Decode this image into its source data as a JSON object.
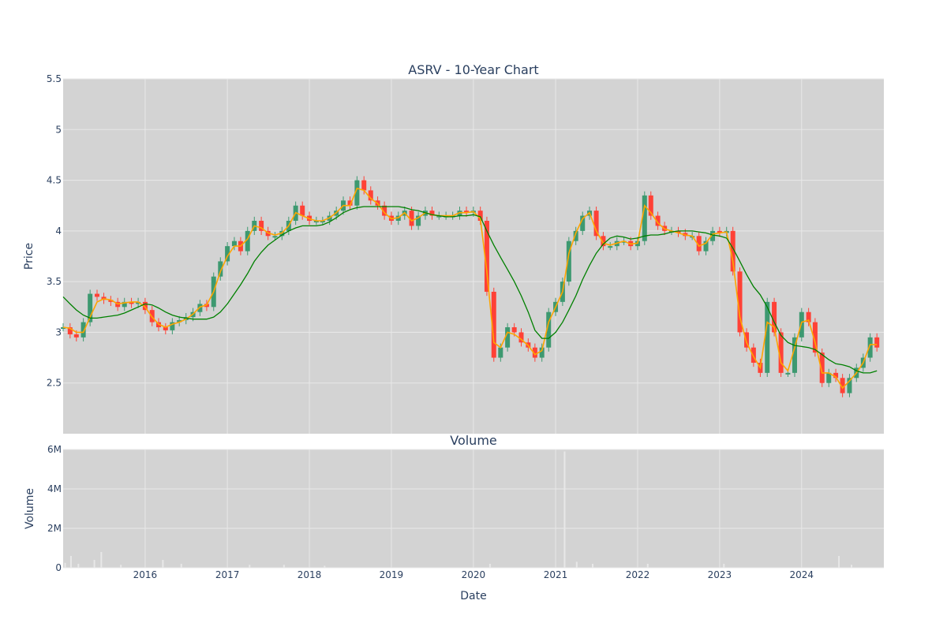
{
  "chart_data": [
    {
      "type": "line",
      "title": "ASRV - 10-Year Chart",
      "ylabel": "Price",
      "xlabel": "",
      "ylim": [
        2.0,
        5.5
      ],
      "x_range": [
        "2015-01-01",
        "2025-01-01"
      ],
      "y_ticks": [
        "2.5",
        "3",
        "3.5",
        "4",
        "4.5",
        "5",
        "5.5"
      ],
      "y_tick_values": [
        2.5,
        3,
        3.5,
        4,
        4.5,
        5,
        5.5
      ],
      "grid": true,
      "legend": "none",
      "colors": {
        "up": "#3d9970",
        "down": "#ff4136",
        "short_ma": "#ffa500",
        "long_ma": "#008000",
        "plot_bg": "#d3d3d3",
        "grid": "#e8e8e8",
        "text": "#2a3f5f"
      },
      "series": [
        {
          "role": "price",
          "x": [
            "2015-01-01",
            "2015-02-01",
            "2015-03-01",
            "2015-04-01",
            "2015-05-01",
            "2015-06-01",
            "2015-07-01",
            "2015-08-01",
            "2015-09-01",
            "2015-10-01",
            "2015-11-01",
            "2015-12-01",
            "2016-01-01",
            "2016-02-01",
            "2016-03-01",
            "2016-04-01",
            "2016-05-01",
            "2016-06-01",
            "2016-07-01",
            "2016-08-01",
            "2016-09-01",
            "2016-10-01",
            "2016-11-01",
            "2016-12-01",
            "2017-01-01",
            "2017-02-01",
            "2017-03-01",
            "2017-04-01",
            "2017-05-01",
            "2017-06-01",
            "2017-07-01",
            "2017-08-01",
            "2017-09-01",
            "2017-10-01",
            "2017-11-01",
            "2017-12-01",
            "2018-01-01",
            "2018-02-01",
            "2018-03-01",
            "2018-04-01",
            "2018-05-01",
            "2018-06-01",
            "2018-07-01",
            "2018-08-01",
            "2018-09-01",
            "2018-10-01",
            "2018-11-01",
            "2018-12-01",
            "2019-01-01",
            "2019-02-01",
            "2019-03-01",
            "2019-04-01",
            "2019-05-01",
            "2019-06-01",
            "2019-07-01",
            "2019-08-01",
            "2019-09-01",
            "2019-10-01",
            "2019-11-01",
            "2019-12-01",
            "2020-01-01",
            "2020-02-01",
            "2020-03-01",
            "2020-04-01",
            "2020-05-01",
            "2020-06-01",
            "2020-07-01",
            "2020-08-01",
            "2020-09-01",
            "2020-10-01",
            "2020-11-01",
            "2020-12-01",
            "2021-01-01",
            "2021-02-01",
            "2021-03-01",
            "2021-04-01",
            "2021-05-01",
            "2021-06-01",
            "2021-07-01",
            "2021-08-01",
            "2021-09-01",
            "2021-10-01",
            "2021-11-01",
            "2021-12-01",
            "2022-01-01",
            "2022-02-01",
            "2022-03-01",
            "2022-04-01",
            "2022-05-01",
            "2022-06-01",
            "2022-07-01",
            "2022-08-01",
            "2022-09-01",
            "2022-10-01",
            "2022-11-01",
            "2022-12-01",
            "2023-01-01",
            "2023-02-01",
            "2023-03-01",
            "2023-04-01",
            "2023-05-01",
            "2023-06-01",
            "2023-07-01",
            "2023-08-01",
            "2023-09-01",
            "2023-10-01",
            "2023-11-01",
            "2023-12-01",
            "2024-01-01",
            "2024-02-01",
            "2024-03-01",
            "2024-04-01",
            "2024-05-01",
            "2024-06-01",
            "2024-07-01",
            "2024-08-01",
            "2024-09-01",
            "2024-10-01",
            "2024-11-01",
            "2024-12-01"
          ],
          "y": [
            3.05,
            2.98,
            2.95,
            3.1,
            3.38,
            3.35,
            3.32,
            3.3,
            3.25,
            3.3,
            3.28,
            3.3,
            3.22,
            3.1,
            3.05,
            3.02,
            3.1,
            3.12,
            3.15,
            3.2,
            3.28,
            3.25,
            3.55,
            3.7,
            3.85,
            3.9,
            3.8,
            4.0,
            4.1,
            4.0,
            3.95,
            3.95,
            4.0,
            4.1,
            4.25,
            4.15,
            4.1,
            4.1,
            4.1,
            4.15,
            4.2,
            4.3,
            4.25,
            4.5,
            4.4,
            4.3,
            4.25,
            4.15,
            4.1,
            4.15,
            4.2,
            4.05,
            4.15,
            4.2,
            4.15,
            4.15,
            4.15,
            4.15,
            4.2,
            4.18,
            4.2,
            4.1,
            3.4,
            2.75,
            2.85,
            3.05,
            3.0,
            2.9,
            2.85,
            2.75,
            2.85,
            3.2,
            3.3,
            3.5,
            3.9,
            4.0,
            4.15,
            4.2,
            3.95,
            3.85,
            3.85,
            3.9,
            3.9,
            3.85,
            3.9,
            4.35,
            4.15,
            4.05,
            4.0,
            4.0,
            3.98,
            3.95,
            3.95,
            3.8,
            3.9,
            4.0,
            3.98,
            4.0,
            3.6,
            3.0,
            2.85,
            2.7,
            2.6,
            3.3,
            3.0,
            2.6,
            2.6,
            2.95,
            3.2,
            3.1,
            2.8,
            2.5,
            2.6,
            2.55,
            2.4,
            2.55,
            2.65,
            2.75,
            2.95,
            2.85
          ]
        },
        {
          "role": "short_moving_average",
          "x": [
            "2015-01-01",
            "2015-02-01",
            "2015-03-01",
            "2015-04-01",
            "2015-05-01",
            "2015-06-01",
            "2015-07-01",
            "2015-08-01",
            "2015-09-01",
            "2015-10-01",
            "2015-11-01",
            "2015-12-01",
            "2016-01-01",
            "2016-02-01",
            "2016-03-01",
            "2016-04-01",
            "2016-05-01",
            "2016-06-01",
            "2016-07-01",
            "2016-08-01",
            "2016-09-01",
            "2016-10-01",
            "2016-11-01",
            "2016-12-01",
            "2017-01-01",
            "2017-02-01",
            "2017-03-01",
            "2017-04-01",
            "2017-05-01",
            "2017-06-01",
            "2017-07-01",
            "2017-08-01",
            "2017-09-01",
            "2017-10-01",
            "2017-11-01",
            "2017-12-01",
            "2018-01-01",
            "2018-02-01",
            "2018-03-01",
            "2018-04-01",
            "2018-05-01",
            "2018-06-01",
            "2018-07-01",
            "2018-08-01",
            "2018-09-01",
            "2018-10-01",
            "2018-11-01",
            "2018-12-01",
            "2019-01-01",
            "2019-02-01",
            "2019-03-01",
            "2019-04-01",
            "2019-05-01",
            "2019-06-01",
            "2019-07-01",
            "2019-08-01",
            "2019-09-01",
            "2019-10-01",
            "2019-11-01",
            "2019-12-01",
            "2020-01-01",
            "2020-02-01",
            "2020-03-01",
            "2020-04-01",
            "2020-05-01",
            "2020-06-01",
            "2020-07-01",
            "2020-08-01",
            "2020-09-01",
            "2020-10-01",
            "2020-11-01",
            "2020-12-01",
            "2021-01-01",
            "2021-02-01",
            "2021-03-01",
            "2021-04-01",
            "2021-05-01",
            "2021-06-01",
            "2021-07-01",
            "2021-08-01",
            "2021-09-01",
            "2021-10-01",
            "2021-11-01",
            "2021-12-01",
            "2022-01-01",
            "2022-02-01",
            "2022-03-01",
            "2022-04-01",
            "2022-05-01",
            "2022-06-01",
            "2022-07-01",
            "2022-08-01",
            "2022-09-01",
            "2022-10-01",
            "2022-11-01",
            "2022-12-01",
            "2023-01-01",
            "2023-02-01",
            "2023-03-01",
            "2023-04-01",
            "2023-05-01",
            "2023-06-01",
            "2023-07-01",
            "2023-08-01",
            "2023-09-01",
            "2023-10-01",
            "2023-11-01",
            "2023-12-01",
            "2024-01-01",
            "2024-02-01",
            "2024-03-01",
            "2024-04-01",
            "2024-05-01",
            "2024-06-01",
            "2024-07-01",
            "2024-08-01",
            "2024-09-01",
            "2024-10-01",
            "2024-11-01",
            "2024-12-01"
          ],
          "y": [
            3.05,
            3.04,
            3.0,
            3.0,
            3.15,
            3.3,
            3.33,
            3.32,
            3.28,
            3.29,
            3.3,
            3.3,
            3.25,
            3.15,
            3.08,
            3.05,
            3.08,
            3.1,
            3.13,
            3.18,
            3.25,
            3.27,
            3.4,
            3.6,
            3.75,
            3.85,
            3.85,
            3.92,
            4.05,
            4.03,
            3.98,
            3.96,
            3.98,
            4.05,
            4.18,
            4.15,
            4.12,
            4.1,
            4.1,
            4.13,
            4.18,
            4.25,
            4.25,
            4.42,
            4.4,
            4.32,
            4.27,
            4.18,
            4.12,
            4.13,
            4.18,
            4.1,
            4.13,
            4.18,
            4.16,
            4.15,
            4.15,
            4.15,
            4.18,
            4.18,
            4.19,
            4.12,
            3.6,
            2.9,
            2.85,
            3.0,
            2.98,
            2.93,
            2.87,
            2.78,
            2.82,
            3.1,
            3.25,
            3.4,
            3.78,
            3.98,
            4.12,
            4.18,
            4.0,
            3.88,
            3.86,
            3.88,
            3.9,
            3.87,
            3.88,
            4.25,
            4.18,
            4.08,
            4.02,
            4.0,
            3.98,
            3.96,
            3.95,
            3.85,
            3.88,
            3.97,
            3.98,
            3.99,
            3.7,
            3.15,
            2.9,
            2.76,
            2.65,
            3.1,
            3.05,
            2.7,
            2.62,
            2.85,
            3.1,
            3.12,
            2.9,
            2.6,
            2.6,
            2.56,
            2.45,
            2.52,
            2.6,
            2.7,
            2.88,
            2.88
          ]
        },
        {
          "role": "long_moving_average",
          "x": [
            "2015-01-01",
            "2015-02-01",
            "2015-03-01",
            "2015-04-01",
            "2015-05-01",
            "2015-06-01",
            "2015-07-01",
            "2015-08-01",
            "2015-09-01",
            "2015-10-01",
            "2015-11-01",
            "2015-12-01",
            "2016-01-01",
            "2016-02-01",
            "2016-03-01",
            "2016-04-01",
            "2016-05-01",
            "2016-06-01",
            "2016-07-01",
            "2016-08-01",
            "2016-09-01",
            "2016-10-01",
            "2016-11-01",
            "2016-12-01",
            "2017-01-01",
            "2017-02-01",
            "2017-03-01",
            "2017-04-01",
            "2017-05-01",
            "2017-06-01",
            "2017-07-01",
            "2017-08-01",
            "2017-09-01",
            "2017-10-01",
            "2017-11-01",
            "2017-12-01",
            "2018-01-01",
            "2018-02-01",
            "2018-03-01",
            "2018-04-01",
            "2018-05-01",
            "2018-06-01",
            "2018-07-01",
            "2018-08-01",
            "2018-09-01",
            "2018-10-01",
            "2018-11-01",
            "2018-12-01",
            "2019-01-01",
            "2019-02-01",
            "2019-03-01",
            "2019-04-01",
            "2019-05-01",
            "2019-06-01",
            "2019-07-01",
            "2019-08-01",
            "2019-09-01",
            "2019-10-01",
            "2019-11-01",
            "2019-12-01",
            "2020-01-01",
            "2020-02-01",
            "2020-03-01",
            "2020-04-01",
            "2020-05-01",
            "2020-06-01",
            "2020-07-01",
            "2020-08-01",
            "2020-09-01",
            "2020-10-01",
            "2020-11-01",
            "2020-12-01",
            "2021-01-01",
            "2021-02-01",
            "2021-03-01",
            "2021-04-01",
            "2021-05-01",
            "2021-06-01",
            "2021-07-01",
            "2021-08-01",
            "2021-09-01",
            "2021-10-01",
            "2021-11-01",
            "2021-12-01",
            "2022-01-01",
            "2022-02-01",
            "2022-03-01",
            "2022-04-01",
            "2022-05-01",
            "2022-06-01",
            "2022-07-01",
            "2022-08-01",
            "2022-09-01",
            "2022-10-01",
            "2022-11-01",
            "2022-12-01",
            "2023-01-01",
            "2023-02-01",
            "2023-03-01",
            "2023-04-01",
            "2023-05-01",
            "2023-06-01",
            "2023-07-01",
            "2023-08-01",
            "2023-09-01",
            "2023-10-01",
            "2023-11-01",
            "2023-12-01",
            "2024-01-01",
            "2024-02-01",
            "2024-03-01",
            "2024-04-01",
            "2024-05-01",
            "2024-06-01",
            "2024-07-01",
            "2024-08-01",
            "2024-09-01",
            "2024-10-01",
            "2024-11-01",
            "2024-12-01"
          ],
          "y": [
            3.35,
            3.28,
            3.22,
            3.17,
            3.14,
            3.14,
            3.15,
            3.16,
            3.17,
            3.19,
            3.22,
            3.25,
            3.28,
            3.27,
            3.24,
            3.2,
            3.17,
            3.15,
            3.14,
            3.13,
            3.13,
            3.13,
            3.15,
            3.2,
            3.28,
            3.38,
            3.47,
            3.58,
            3.7,
            3.79,
            3.86,
            3.91,
            3.96,
            4.0,
            4.03,
            4.05,
            4.05,
            4.05,
            4.06,
            4.09,
            4.13,
            4.18,
            4.21,
            4.23,
            4.24,
            4.24,
            4.24,
            4.24,
            4.24,
            4.24,
            4.23,
            4.21,
            4.2,
            4.18,
            4.16,
            4.15,
            4.14,
            4.14,
            4.15,
            4.15,
            4.16,
            4.14,
            4.0,
            3.86,
            3.74,
            3.62,
            3.5,
            3.36,
            3.2,
            3.02,
            2.94,
            2.94,
            3.0,
            3.1,
            3.22,
            3.36,
            3.52,
            3.66,
            3.78,
            3.87,
            3.93,
            3.95,
            3.94,
            3.92,
            3.93,
            3.95,
            3.96,
            3.96,
            3.97,
            3.99,
            4.0,
            4.0,
            4.0,
            3.99,
            3.98,
            3.96,
            3.95,
            3.93,
            3.83,
            3.7,
            3.57,
            3.45,
            3.37,
            3.25,
            3.1,
            2.97,
            2.9,
            2.87,
            2.86,
            2.85,
            2.83,
            2.78,
            2.73,
            2.69,
            2.68,
            2.66,
            2.62,
            2.6,
            2.6,
            2.62
          ]
        }
      ]
    },
    {
      "type": "bar",
      "title": "Volume",
      "ylabel": "Volume",
      "xlabel": "Date",
      "ylim": [
        0,
        6000000
      ],
      "x_range": [
        "2015-01-01",
        "2025-01-01"
      ],
      "x_ticks": [
        "2016",
        "2017",
        "2018",
        "2019",
        "2020",
        "2021",
        "2022",
        "2023",
        "2024"
      ],
      "y_ticks": [
        "0",
        "2M",
        "4M",
        "6M"
      ],
      "y_tick_values": [
        0,
        2000000,
        4000000,
        6000000
      ],
      "grid": true,
      "legend": "none",
      "colors": {
        "bar": "#e8e8e8",
        "plot_bg": "#d3d3d3"
      },
      "x": [
        "2015-01-10",
        "2015-02-05",
        "2015-03-10",
        "2015-05-20",
        "2015-06-20",
        "2015-09-15",
        "2016-03-20",
        "2016-06-10",
        "2017-04-10",
        "2017-09-10",
        "2018-03-10",
        "2020-03-15",
        "2021-02-10",
        "2021-04-05",
        "2021-06-15",
        "2022-02-15",
        "2023-01-20",
        "2024-06-15",
        "2024-08-10"
      ],
      "values": [
        250000,
        600000,
        200000,
        400000,
        800000,
        150000,
        400000,
        200000,
        150000,
        150000,
        100000,
        200000,
        5900000,
        300000,
        200000,
        200000,
        200000,
        600000,
        150000
      ]
    }
  ]
}
